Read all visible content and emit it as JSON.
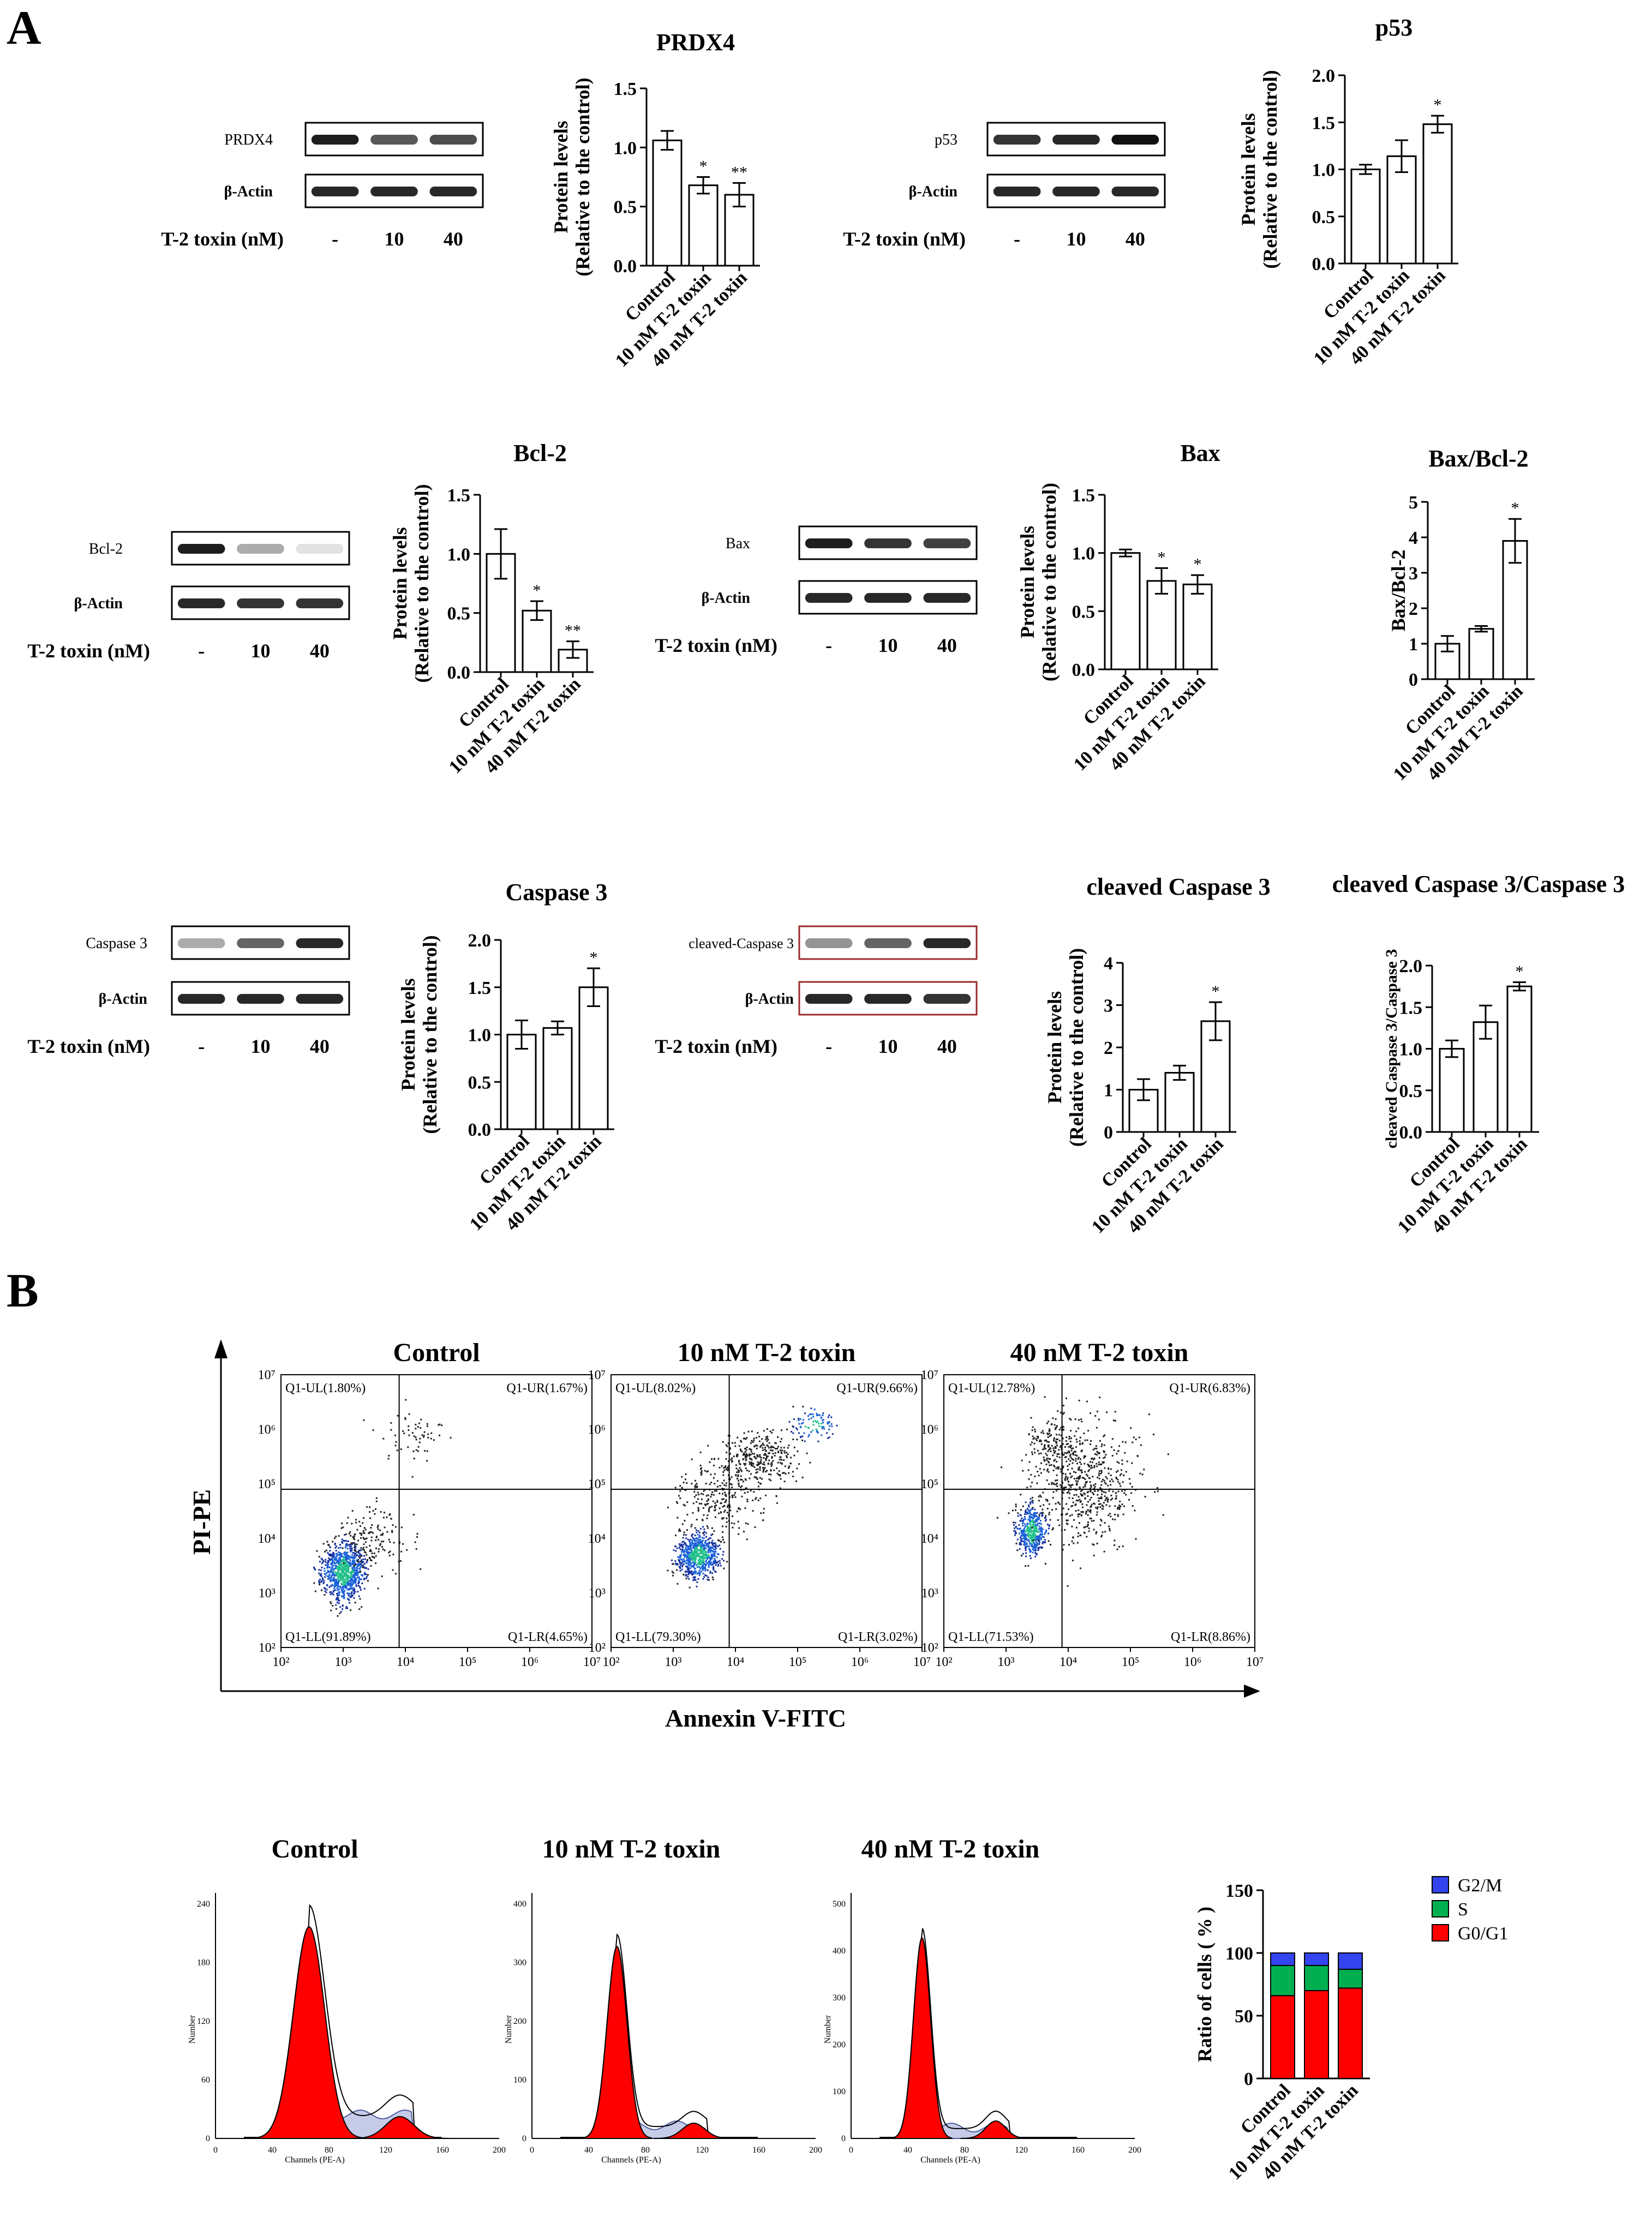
{
  "panel_labels": {
    "a": "A",
    "b": "B"
  },
  "lanes": [
    "-",
    "10",
    "40"
  ],
  "toxin_label": "T-2 toxin (nM)",
  "actin_label": "β-Actin",
  "ylabel_protein": [
    "Protein levels",
    "(Relative to the control)"
  ],
  "groups": [
    "Control",
    "10 nM T-2 toxin",
    "40 nM T-2 toxin"
  ],
  "chart_data": [
    {
      "id": "prdx4",
      "type": "bar",
      "title": "PRDX4",
      "blot_label": "PRDX4",
      "categories": [
        "Control",
        "10 nM T-2 toxin",
        "40 nM T-2 toxin"
      ],
      "values": [
        1.06,
        0.68,
        0.6
      ],
      "errors": [
        0.08,
        0.07,
        0.1
      ],
      "sig": [
        "",
        "*",
        "**"
      ],
      "ylabel": [
        "Protein levels",
        "(Relative to the control)"
      ],
      "ylim": [
        0,
        1.5
      ],
      "ticks": [
        "0.0",
        "0.5",
        "1.0",
        "1.5"
      ],
      "tickvals": [
        0,
        0.5,
        1,
        1.5
      ],
      "blot": {
        "target": [
          0.95,
          0.7,
          0.75
        ],
        "actin": [
          0.9,
          0.9,
          0.9
        ]
      }
    },
    {
      "id": "p53",
      "type": "bar",
      "title": "p53",
      "blot_label": "p53",
      "categories": [
        "Control",
        "10 nM T-2 toxin",
        "40 nM T-2 toxin"
      ],
      "values": [
        1.0,
        1.14,
        1.48
      ],
      "errors": [
        0.05,
        0.17,
        0.09
      ],
      "sig": [
        "",
        "",
        "*"
      ],
      "ylabel": [
        "Protein levels",
        "(Relative to the control)"
      ],
      "ylim": [
        0,
        2
      ],
      "ticks": [
        "0.0",
        "0.5",
        "1.0",
        "1.5",
        "2.0"
      ],
      "tickvals": [
        0,
        0.5,
        1,
        1.5,
        2
      ],
      "blot": {
        "target": [
          0.85,
          0.9,
          1.0
        ],
        "actin": [
          0.9,
          0.9,
          0.9
        ]
      }
    },
    {
      "id": "bcl2",
      "type": "bar",
      "title": "Bcl-2",
      "blot_label": "Bcl-2",
      "categories": [
        "Control",
        "10 nM T-2 toxin",
        "40 nM T-2 toxin"
      ],
      "values": [
        1.0,
        0.52,
        0.19
      ],
      "errors": [
        0.21,
        0.08,
        0.07
      ],
      "sig": [
        "",
        "*",
        "**"
      ],
      "ylabel": [
        "Protein levels",
        "(Relative to the control)"
      ],
      "ylim": [
        0,
        1.5
      ],
      "ticks": [
        "0.0",
        "0.5",
        "1.0",
        "1.5"
      ],
      "tickvals": [
        0,
        0.5,
        1,
        1.5
      ],
      "blot": {
        "target": [
          0.95,
          0.35,
          0.12
        ],
        "actin": [
          0.9,
          0.85,
          0.85
        ]
      }
    },
    {
      "id": "bax",
      "type": "bar",
      "title": "Bax",
      "blot_label": "Bax",
      "categories": [
        "Control",
        "10 nM T-2 toxin",
        "40 nM T-2 toxin"
      ],
      "values": [
        1.0,
        0.76,
        0.73
      ],
      "errors": [
        0.03,
        0.11,
        0.08
      ],
      "sig": [
        "",
        "*",
        "*"
      ],
      "ylabel": [
        "Protein levels",
        "(Relative to the control)"
      ],
      "ylim": [
        0,
        1.5
      ],
      "ticks": [
        "0.0",
        "0.5",
        "1.0",
        "1.5"
      ],
      "tickvals": [
        0,
        0.5,
        1,
        1.5
      ],
      "blot": {
        "target": [
          0.95,
          0.85,
          0.8
        ],
        "actin": [
          0.9,
          0.9,
          0.9
        ]
      }
    },
    {
      "id": "baxbcl2",
      "type": "bar",
      "title": "Bax/Bcl-2",
      "categories": [
        "Control",
        "10 nM T-2 toxin",
        "40 nM T-2 toxin"
      ],
      "values": [
        1.0,
        1.42,
        3.9
      ],
      "errors": [
        0.22,
        0.08,
        0.62
      ],
      "sig": [
        "",
        "",
        "*"
      ],
      "ylabel": [
        "Bax/Bcl-2"
      ],
      "ylim": [
        0,
        5
      ],
      "ticks": [
        "0",
        "1",
        "2",
        "3",
        "4",
        "5"
      ],
      "tickvals": [
        0,
        1,
        2,
        3,
        4,
        5
      ]
    },
    {
      "id": "casp3",
      "type": "bar",
      "title": "Caspase 3",
      "blot_label": "Caspase 3",
      "categories": [
        "Control",
        "10 nM T-2 toxin",
        "40 nM T-2 toxin"
      ],
      "values": [
        1.0,
        1.07,
        1.5
      ],
      "errors": [
        0.15,
        0.07,
        0.2
      ],
      "sig": [
        "",
        "",
        "*"
      ],
      "ylabel": [
        "Protein levels",
        "(Relative to the control)"
      ],
      "ylim": [
        0,
        2
      ],
      "ticks": [
        "0.0",
        "0.5",
        "1.0",
        "1.5",
        "2.0"
      ],
      "tickvals": [
        0,
        0.5,
        1,
        1.5,
        2
      ],
      "blot": {
        "target": [
          0.35,
          0.65,
          0.9
        ],
        "actin": [
          0.9,
          0.9,
          0.9
        ]
      }
    },
    {
      "id": "clcasp3",
      "type": "bar",
      "title": "cleaved Caspase 3",
      "blot_label": "cleaved-Caspase 3",
      "categories": [
        "Control",
        "10 nM T-2 toxin",
        "40 nM T-2 toxin"
      ],
      "values": [
        1.0,
        1.4,
        2.62
      ],
      "errors": [
        0.25,
        0.17,
        0.45
      ],
      "sig": [
        "",
        "",
        "*"
      ],
      "ylabel": [
        "Protein levels",
        "(Relative to the control)"
      ],
      "ylim": [
        0,
        4
      ],
      "ticks": [
        "0",
        "1",
        "2",
        "3",
        "4"
      ],
      "tickvals": [
        0,
        1,
        2,
        3,
        4
      ],
      "blot": {
        "target": [
          0.45,
          0.65,
          0.9
        ],
        "actin": [
          0.9,
          0.9,
          0.85
        ]
      }
    },
    {
      "id": "ratio",
      "type": "bar",
      "title": "cleaved Caspase 3/Caspase 3",
      "categories": [
        "Control",
        "10 nM T-2 toxin",
        "40 nM T-2 toxin"
      ],
      "values": [
        1.0,
        1.32,
        1.75
      ],
      "errors": [
        0.1,
        0.2,
        0.05
      ],
      "sig": [
        "",
        "",
        "*"
      ],
      "ylabel": [
        "cleaved Caspase 3/Caspase 3"
      ],
      "ylim": [
        0,
        2
      ],
      "ticks": [
        "0.0",
        "0.5",
        "1.0",
        "1.5",
        "2.0"
      ],
      "tickvals": [
        0,
        0.5,
        1,
        1.5,
        2
      ]
    },
    {
      "id": "flow",
      "type": "scatter",
      "xlabel": "Annexin V-FITC",
      "ylabel": "PI-PE",
      "axis_ticks": [
        "10²",
        "10³",
        "10⁴",
        "10⁵",
        "10⁶",
        "10⁷"
      ],
      "plots": [
        {
          "title": "Control",
          "q": {
            "UL": "Q1-UL(1.80%)",
            "UR": "Q1-UR(1.67%)",
            "LL": "Q1-LL(91.89%)",
            "LR": "Q1-LR(4.65%)"
          },
          "values": {
            "UL": 1.8,
            "UR": 1.67,
            "LL": 91.89,
            "LR": 4.65
          }
        },
        {
          "title": "10 nM T-2 toxin",
          "q": {
            "UL": "Q1-UL(8.02%)",
            "UR": "Q1-UR(9.66%)",
            "LL": "Q1-LL(79.30%)",
            "LR": "Q1-LR(3.02%)"
          },
          "values": {
            "UL": 8.02,
            "UR": 9.66,
            "LL": 79.3,
            "LR": 3.02
          }
        },
        {
          "title": "40 nM T-2 toxin",
          "q": {
            "UL": "Q1-UL(12.78%)",
            "UR": "Q1-UR(6.83%)",
            "LL": "Q1-LL(71.53%)",
            "LR": "Q1-LR(8.86%)"
          },
          "values": {
            "UL": 12.78,
            "UR": 6.83,
            "LL": 71.53,
            "LR": 8.86
          }
        }
      ]
    },
    {
      "id": "cellcycle",
      "type": "area",
      "xlabel": "Channels (PE-A)",
      "ylabel": "Number",
      "plots": [
        {
          "title": "Control",
          "xticks": [
            "0",
            "40",
            "80",
            "120",
            "160",
            "200"
          ],
          "yticks": [
            "0",
            "60",
            "120",
            "180",
            "240"
          ]
        },
        {
          "title": "10 nM T-2 toxin",
          "xticks": [
            "0",
            "40",
            "80",
            "120",
            "160",
            "200"
          ],
          "yticks": [
            "0",
            "100",
            "200",
            "300",
            "400"
          ]
        },
        {
          "title": "40 nM T-2 toxin",
          "xticks": [
            "0",
            "40",
            "80",
            "120",
            "160",
            "200"
          ],
          "yticks": [
            "0",
            "100",
            "200",
            "300",
            "400",
            "500"
          ]
        }
      ]
    },
    {
      "id": "stack",
      "type": "bar",
      "stacked": true,
      "ylabel": "Ratio of cells ( % )",
      "ylim": [
        0,
        150
      ],
      "ticks": [
        "0",
        "50",
        "100",
        "150"
      ],
      "tickvals": [
        0,
        50,
        100,
        150
      ],
      "categories": [
        "Control",
        "10 nM T-2  toxin",
        "40 nM T-2 toxin"
      ],
      "series": [
        {
          "name": "G0/G1",
          "color": "#ff0000",
          "values": [
            66,
            70,
            72
          ]
        },
        {
          "name": "S",
          "color": "#00b050",
          "values": [
            24,
            20,
            15
          ]
        },
        {
          "name": "G2/M",
          "color": "#3344ee",
          "values": [
            10,
            10,
            13
          ]
        }
      ],
      "legend_order": [
        "G2/M",
        "S",
        "G0/G1"
      ]
    }
  ]
}
